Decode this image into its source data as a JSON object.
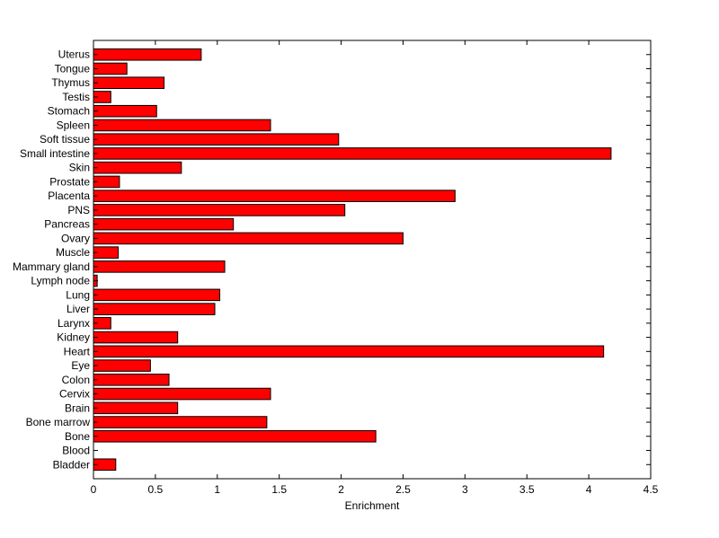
{
  "chart_data": {
    "type": "bar",
    "orientation": "horizontal",
    "title": "",
    "xlabel": "Enrichment",
    "ylabel": "",
    "xlim": [
      0,
      4.5
    ],
    "xticks": [
      "0",
      "0.5",
      "1",
      "1.5",
      "2",
      "2.5",
      "3",
      "3.5",
      "4",
      "4.5"
    ],
    "grid": false,
    "bar_color": "#ff0000",
    "edge_color": "#000000",
    "categories": [
      "Bladder",
      "Blood",
      "Bone",
      "Bone marrow",
      "Brain",
      "Cervix",
      "Colon",
      "Eye",
      "Heart",
      "Kidney",
      "Larynx",
      "Liver",
      "Lung",
      "Lymph node",
      "Mammary gland",
      "Muscle",
      "Ovary",
      "Pancreas",
      "PNS",
      "Placenta",
      "Prostate",
      "Skin",
      "Small intestine",
      "Soft tissue",
      "Spleen",
      "Stomach",
      "Testis",
      "Thymus",
      "Tongue",
      "Uterus"
    ],
    "values": [
      0.18,
      0.0,
      2.28,
      1.4,
      0.68,
      1.43,
      0.61,
      0.46,
      4.12,
      0.68,
      0.14,
      0.98,
      1.02,
      0.03,
      1.06,
      0.2,
      2.5,
      1.13,
      2.03,
      2.92,
      0.21,
      0.71,
      4.18,
      1.98,
      1.43,
      0.51,
      0.14,
      0.57,
      0.27,
      0.87
    ]
  }
}
